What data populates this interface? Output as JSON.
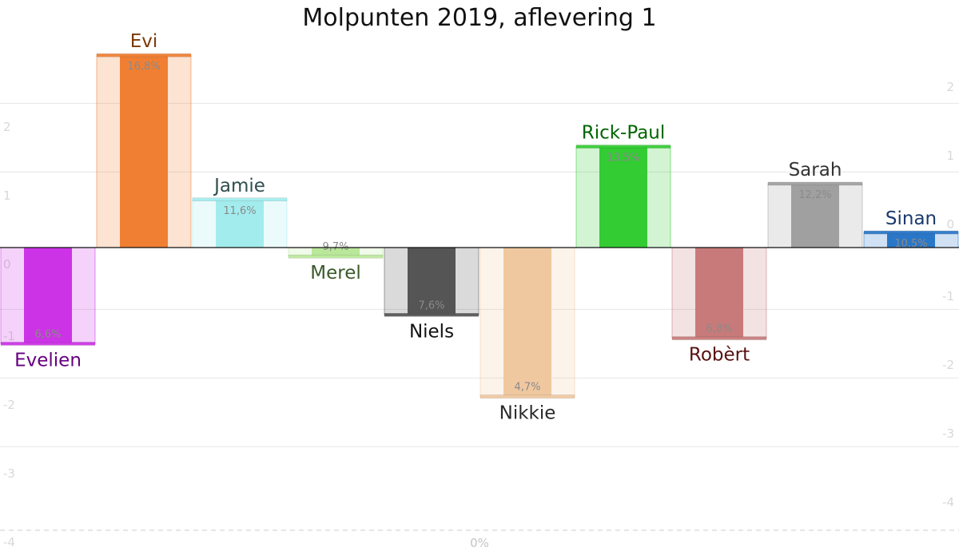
{
  "chart_data": {
    "type": "bar",
    "title": "Molpunten 2019, aflevering 1",
    "ylim": [
      -4,
      2.8
    ],
    "yticks_left": [
      "2",
      "1",
      "0",
      "-1",
      "-2",
      "-3",
      "-4"
    ],
    "yticks_right": [
      "2",
      "1",
      "0",
      "-1",
      "-2",
      "-3",
      "-4"
    ],
    "bottom_label": "0%",
    "grid": true,
    "categories": [
      "Evelien",
      "Evi",
      "Jamie",
      "Merel",
      "Niels",
      "Nikkie",
      "Rick-Paul",
      "Robèrt",
      "Sarah",
      "Sinan"
    ],
    "values": [
      -1.4,
      2.8,
      0.7,
      -0.13,
      -0.98,
      -2.17,
      1.47,
      -1.32,
      0.93,
      0.22
    ],
    "percent_labels": [
      "6,6%",
      "16,8%",
      "11,6%",
      "9,7%",
      "7,6%",
      "4,7%",
      "13,5%",
      "6,8%",
      "12,2%",
      "10,5%"
    ],
    "colors": [
      "#cc33e6",
      "#f07f33",
      "#a3ecee",
      "#b9e89a",
      "#555555",
      "#f0c8a0",
      "#33cc33",
      "#c87a7a",
      "#a0a0a0",
      "#2a77c8"
    ],
    "label_colors": [
      "#660080",
      "#7a3a08",
      "#2f4f4f",
      "#3a5a2a",
      "#111111",
      "#2a2a2a",
      "#006600",
      "#5a1010",
      "#333333",
      "#1a3a6e"
    ]
  }
}
